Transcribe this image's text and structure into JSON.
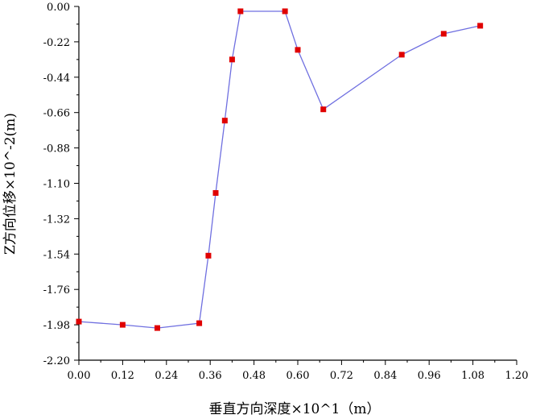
{
  "chart_data": {
    "type": "line",
    "xlabel": "垂直方向深度×10^1（m）",
    "ylabel": "Z方向位移×10^-2(m)",
    "xlim": [
      0.0,
      1.2
    ],
    "ylim": [
      -2.2,
      0.0
    ],
    "x_ticks": [
      "0.00",
      "0.12",
      "0.24",
      "0.36",
      "0.48",
      "0.60",
      "0.72",
      "0.84",
      "0.96",
      "1.08",
      "1.20"
    ],
    "y_ticks": [
      "0.00",
      "-0.22",
      "-0.44",
      "-0.66",
      "-0.88",
      "-1.10",
      "-1.32",
      "-1.54",
      "-1.76",
      "-1.98",
      "-2.20"
    ],
    "grid": false,
    "series": [
      {
        "color": "#6f6fe0",
        "marker_color": "#e00000",
        "x": [
          0.0,
          0.12,
          0.215,
          0.33,
          0.355,
          0.375,
          0.4,
          0.42,
          0.443,
          0.565,
          0.6,
          0.67,
          0.885,
          1.0,
          1.1
        ],
        "y": [
          -1.96,
          -1.98,
          -2.0,
          -1.97,
          -1.55,
          -1.16,
          -0.71,
          -0.33,
          -0.03,
          -0.03,
          -0.27,
          -0.64,
          -0.3,
          -0.17,
          -0.12
        ]
      }
    ]
  }
}
